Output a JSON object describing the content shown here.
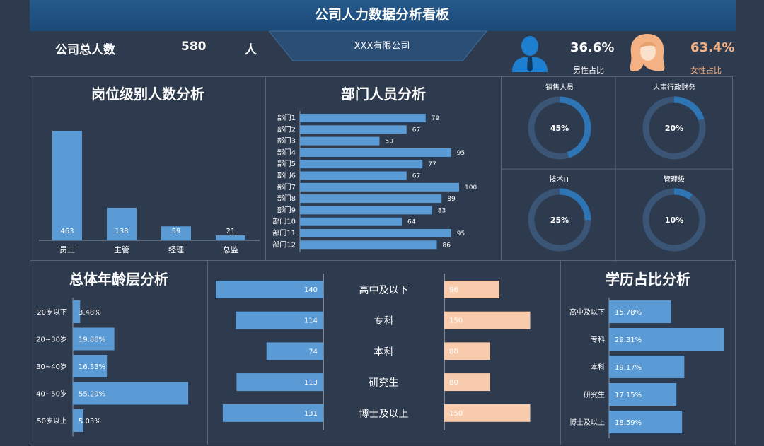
{
  "header": {
    "title": "公司人力数据分析看板",
    "company": "XXX有限公司",
    "total_label": "公司总人数",
    "total_value": "580",
    "total_unit": "人",
    "male_pct": "36.6%",
    "male_label": "男性占比",
    "female_pct": "63.4%",
    "female_label": "女性占比"
  },
  "colors": {
    "bar": "#5b9bd5",
    "female": "#f8cbad",
    "bg": "#2e3a4d",
    "ring_track": "#3b5576",
    "ring_fill": "#2e75b6"
  },
  "chart_data": [
    {
      "id": "position",
      "type": "bar",
      "title": "岗位级别人数分析",
      "categories": [
        "员工",
        "主管",
        "经理",
        "总监"
      ],
      "values": [
        463,
        138,
        59,
        21
      ]
    },
    {
      "id": "department",
      "type": "bar",
      "title": "部门人员分析",
      "categories": [
        "部门1",
        "部门2",
        "部门3",
        "部门4",
        "部门5",
        "部门6",
        "部门7",
        "部门8",
        "部门9",
        "部门10",
        "部门11",
        "部门12"
      ],
      "values": [
        79,
        67,
        50,
        95,
        77,
        67,
        100,
        89,
        83,
        64,
        95,
        86
      ]
    },
    {
      "id": "rings",
      "type": "pie",
      "items": [
        {
          "label": "销售人员",
          "value": 45,
          "text": "45%"
        },
        {
          "label": "人事行政财务",
          "value": 20,
          "text": "20%"
        },
        {
          "label": "技术IT",
          "value": 25,
          "text": "25%"
        },
        {
          "label": "管理级",
          "value": 10,
          "text": "10%"
        }
      ]
    },
    {
      "id": "age",
      "type": "bar",
      "title": "总体年龄层分析",
      "categories": [
        "20岁以下",
        "20~30岁",
        "30~40岁",
        "40~50岁",
        "50岁以上"
      ],
      "values": [
        3.48,
        19.88,
        16.33,
        55.29,
        5.03
      ],
      "labels": [
        "3.48%",
        "19.88%",
        "16.33%",
        "55.29%",
        "5.03%"
      ]
    },
    {
      "id": "education_gender",
      "type": "bar",
      "categories": [
        "高中及以下",
        "专科",
        "本科",
        "研究生",
        "博士及以上"
      ],
      "series": [
        {
          "values": [
            140,
            114,
            74,
            113,
            131
          ]
        },
        {
          "values": [
            96,
            150,
            80,
            80,
            150
          ]
        }
      ]
    },
    {
      "id": "education",
      "type": "bar",
      "title": "学历占比分析",
      "categories": [
        "高中及以下",
        "专科",
        "本科",
        "研究生",
        "博士及以上"
      ],
      "values": [
        15.78,
        29.31,
        19.17,
        17.15,
        18.59
      ],
      "labels": [
        "15.78%",
        "29.31%",
        "19.17%",
        "17.15%",
        "18.59%"
      ]
    }
  ]
}
